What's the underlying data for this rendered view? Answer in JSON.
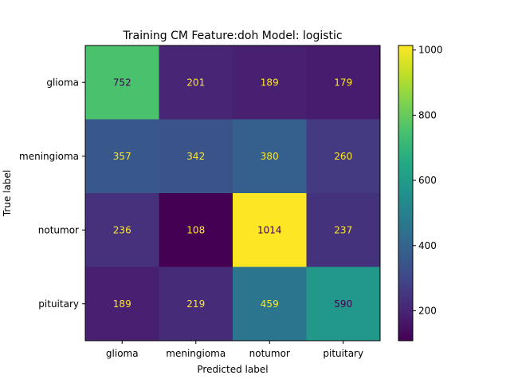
{
  "chart_data": {
    "type": "heatmap",
    "title": "Training CM Feature:doh Model: logistic",
    "xlabel": "Predicted label",
    "ylabel": "True label",
    "x_categories": [
      "glioma",
      "meningioma",
      "notumor",
      "pituitary"
    ],
    "y_categories": [
      "glioma",
      "meningioma",
      "notumor",
      "pituitary"
    ],
    "values": [
      [
        752,
        201,
        189,
        179
      ],
      [
        357,
        342,
        380,
        260
      ],
      [
        236,
        108,
        1014,
        237
      ],
      [
        189,
        219,
        459,
        590
      ]
    ],
    "colormap": "viridis",
    "colorbar": {
      "ticks": [
        200,
        400,
        600,
        800,
        1000
      ],
      "tick_labels": [
        "200",
        "400",
        "600",
        "800",
        "1000"
      ],
      "range": [
        108,
        1014
      ]
    }
  }
}
